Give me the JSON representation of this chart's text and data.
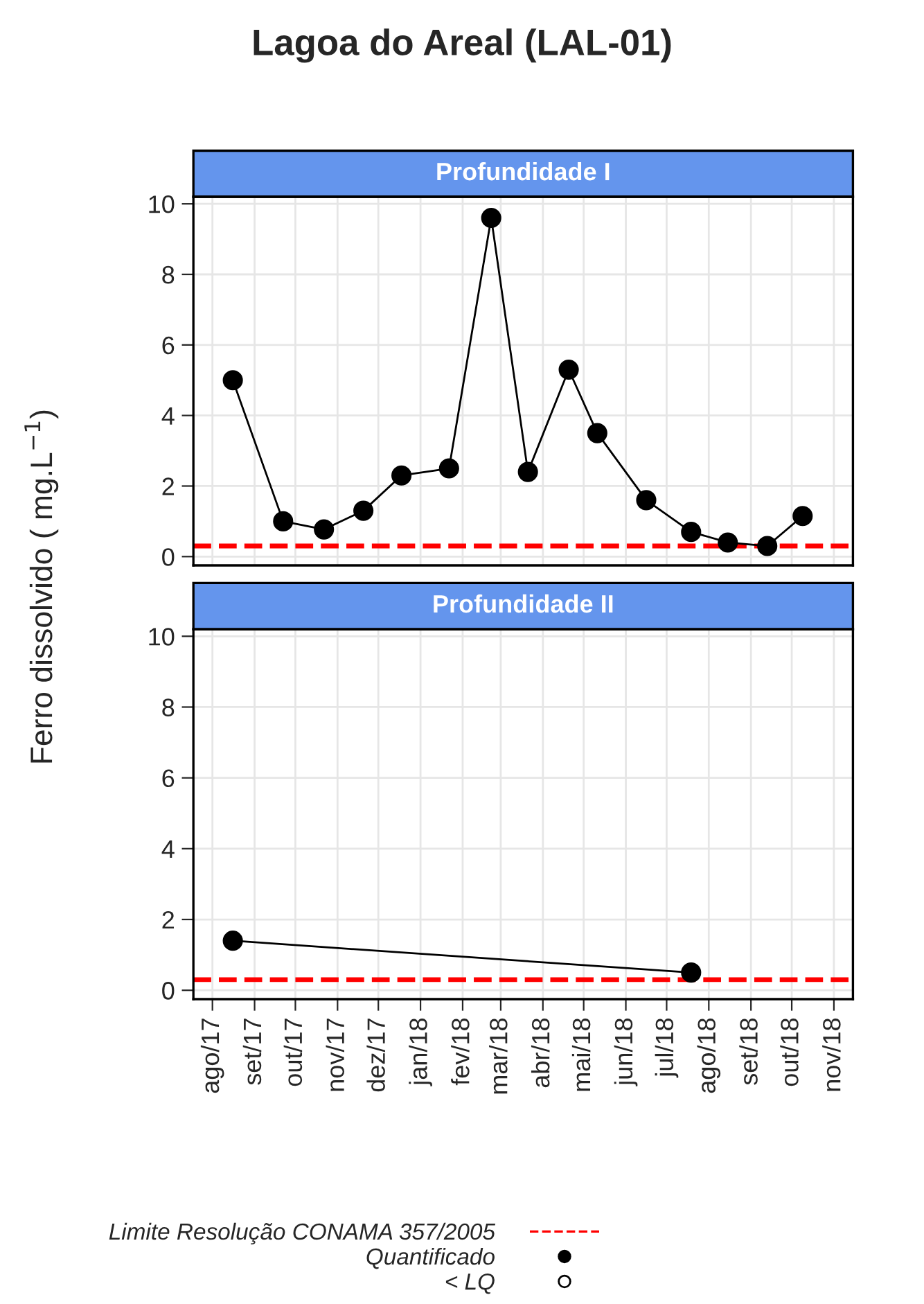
{
  "chart_data": [
    {
      "type": "line",
      "title": "Profundidade I",
      "ylabel": "Ferro dissolvido ( mg.L$^{−1}$)",
      "annotations": [
        "Lagoa do Areal (LAL-01)"
      ],
      "x": [
        "2017-08-16",
        "2017-09-22",
        "2017-10-22",
        "2017-11-20",
        "2017-12-18",
        "2018-01-22",
        "2018-02-22",
        "2018-03-21",
        "2018-04-20",
        "2018-05-11",
        "2018-06-16",
        "2018-07-19",
        "2018-08-15",
        "2018-09-13",
        "2018-10-09"
      ],
      "series": [
        {
          "name": "Quantificado",
          "color": "#000000",
          "values": [
            5.0,
            1.0,
            0.77,
            1.3,
            2.3,
            2.5,
            9.6,
            2.4,
            5.3,
            3.5,
            1.6,
            0.7,
            0.4,
            0.3,
            1.15
          ]
        },
        {
          "name": "< LQ",
          "values": [
            null,
            null,
            null,
            null,
            null,
            null,
            null,
            null,
            null,
            null,
            null,
            null,
            null,
            null,
            null
          ]
        }
      ],
      "ref_lines": [
        {
          "axis": "y",
          "value": 0.3,
          "label": "Limite Resolução CONAMA 357/2005",
          "color": "#ff0000",
          "line_style": "dashed"
        }
      ],
      "xlim": [
        "2017-07-18",
        "2018-11-15"
      ],
      "ylim": [
        -0.25,
        10.2
      ],
      "yticks": [
        0,
        2,
        4,
        6,
        8,
        10
      ],
      "xticks": [
        {
          "value": "2017-08-01",
          "label": null
        },
        {
          "value": "2017-09-01",
          "label": null
        },
        {
          "value": "2017-10-01",
          "label": null
        },
        {
          "value": "2017-11-01",
          "label": null
        },
        {
          "value": "2017-12-01",
          "label": null
        },
        {
          "value": "2018-01-01",
          "label": null
        },
        {
          "value": "2018-02-01",
          "label": null
        },
        {
          "value": "2018-03-01",
          "label": null
        },
        {
          "value": "2018-04-01",
          "label": null
        },
        {
          "value": "2018-05-01",
          "label": null
        },
        {
          "value": "2018-06-01",
          "label": null
        },
        {
          "value": "2018-07-01",
          "label": null
        },
        {
          "value": "2018-08-01",
          "label": null
        },
        {
          "value": "2018-09-01",
          "label": null
        },
        {
          "value": "2018-10-01",
          "label": null
        },
        {
          "value": "2018-11-01",
          "label": null
        }
      ],
      "tick_labels": "y",
      "grid": true,
      "marker": "circle",
      "line_style": "solid",
      "legend": "bottom"
    },
    {
      "type": "line",
      "title": "Profundidade II",
      "x": [
        "2017-08-16",
        "2018-07-19"
      ],
      "series": [
        {
          "color": "#000000",
          "values": [
            1.4,
            0.5
          ]
        }
      ],
      "ref_lines": [
        {
          "axis": "y",
          "value": 0.3,
          "color": "#ff0000",
          "line_style": "dashed"
        }
      ],
      "xlim": [
        "2017-07-18",
        "2018-11-15"
      ],
      "ylim": [
        -0.25,
        10.2
      ],
      "yticks": [
        0,
        2,
        4,
        6,
        8,
        10
      ],
      "xticks": [
        {
          "value": "2017-08-01",
          "label": "ago/17"
        },
        {
          "value": "2017-09-01",
          "label": "set/17"
        },
        {
          "value": "2017-10-01",
          "label": "out/17"
        },
        {
          "value": "2017-11-01",
          "label": "nov/17"
        },
        {
          "value": "2017-12-01",
          "label": "dez/17"
        },
        {
          "value": "2018-01-01",
          "label": "jan/18"
        },
        {
          "value": "2018-02-01",
          "label": "fev/18"
        },
        {
          "value": "2018-03-01",
          "label": "mar/18"
        },
        {
          "value": "2018-04-01",
          "label": "abr/18"
        },
        {
          "value": "2018-05-01",
          "label": "mai/18"
        },
        {
          "value": "2018-06-01",
          "label": "jun/18"
        },
        {
          "value": "2018-07-01",
          "label": "jul/18"
        },
        {
          "value": "2018-08-01",
          "label": "ago/18"
        },
        {
          "value": "2018-09-01",
          "label": "set/18"
        },
        {
          "value": "2018-10-01",
          "label": "out/18"
        },
        {
          "value": "2018-11-01",
          "label": "nov/18"
        }
      ],
      "grid": true,
      "marker": "circle",
      "line_style": "solid"
    }
  ]
}
